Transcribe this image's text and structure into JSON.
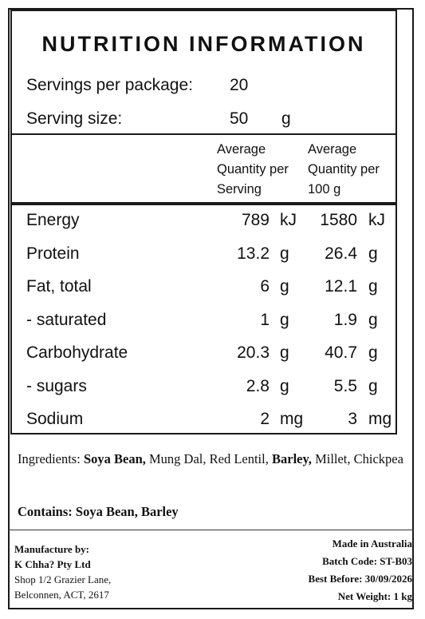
{
  "title": "NUTRITION INFORMATION",
  "servings": {
    "label": "Servings per package:",
    "value": "20"
  },
  "serving_size": {
    "label": "Serving size:",
    "value": "50",
    "unit": "g"
  },
  "columns": {
    "per_serving": "Average\nQuantity per\nServing",
    "per_100g": "Average\nQuantity per\n100 g"
  },
  "nutrients": [
    {
      "name": "Energy",
      "serving": "789",
      "serving_unit": "kJ",
      "per100": "1580",
      "per100_unit": "kJ"
    },
    {
      "name": "Protein",
      "serving": "13.2",
      "serving_unit": "g",
      "per100": "26.4",
      "per100_unit": "g"
    },
    {
      "name": "Fat, total",
      "serving": "6",
      "serving_unit": "g",
      "per100": "12.1",
      "per100_unit": "g"
    },
    {
      "name": "- saturated",
      "serving": "1",
      "serving_unit": "g",
      "per100": "1.9",
      "per100_unit": "g"
    },
    {
      "name": "Carbohydrate",
      "serving": "20.3",
      "serving_unit": "g",
      "per100": "40.7",
      "per100_unit": "g"
    },
    {
      "name": "- sugars",
      "serving": "2.8",
      "serving_unit": "g",
      "per100": "5.5",
      "per100_unit": "g"
    },
    {
      "name": "Sodium",
      "serving": "2",
      "serving_unit": "mg",
      "per100": "3",
      "per100_unit": "mg"
    }
  ],
  "ingredients": {
    "label": "Ingredients: ",
    "items": [
      {
        "text": "Soya Bean,",
        "bold": true
      },
      {
        "text": " Mung Dal, Red Lentil, ",
        "bold": false
      },
      {
        "text": "Barley,",
        "bold": true
      },
      {
        "text": " Millet, Chickpea",
        "bold": false
      }
    ]
  },
  "contains": "Contains: Soya Bean, Barley",
  "manufacturer": {
    "label": "Manufacture by:",
    "name": "K Chha? Pty Ltd",
    "address1": "Shop 1/2 Grazier Lane,",
    "address2": "Belconnen, ACT, 2617"
  },
  "origin": "Made in Australia",
  "batch": "Batch Code: ST-B03",
  "best_before": "Best Before: 30/09/2026",
  "net_weight": "Net Weight: 1 kg"
}
